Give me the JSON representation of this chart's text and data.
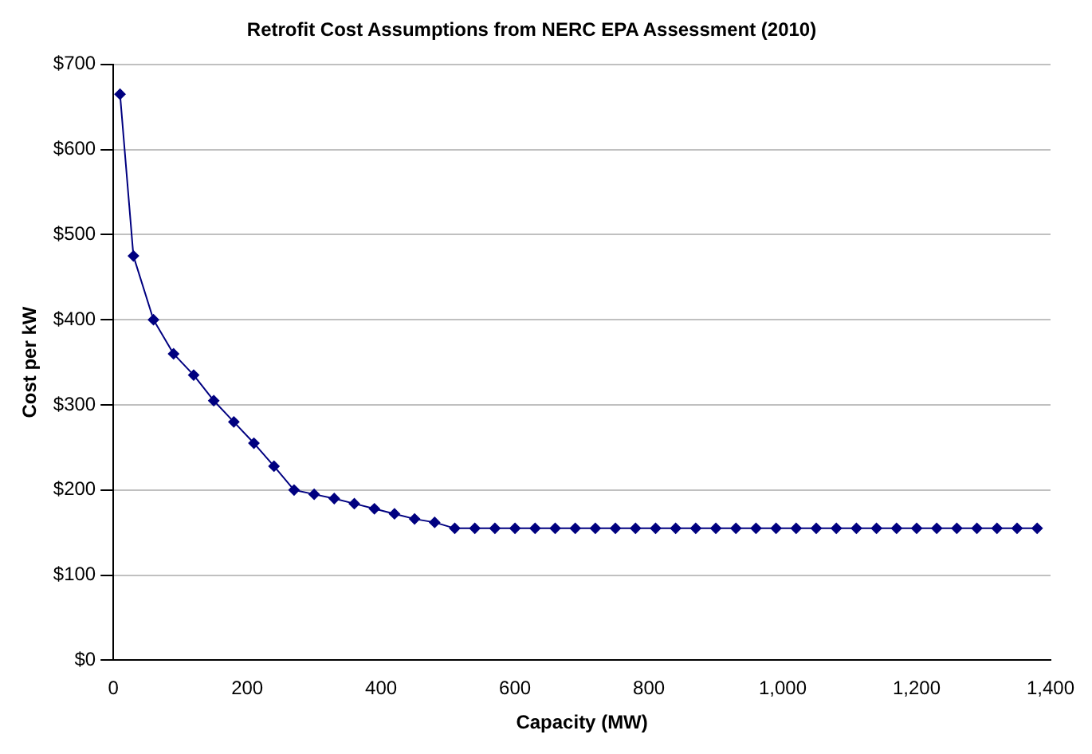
{
  "chart_data": {
    "type": "line",
    "title": "Retrofit Cost Assumptions from NERC EPA Assessment (2010)",
    "xlabel": "Capacity (MW)",
    "ylabel": "Cost per kW",
    "x": [
      10,
      30,
      60,
      90,
      120,
      150,
      180,
      210,
      240,
      270,
      300,
      330,
      360,
      390,
      420,
      450,
      480,
      510,
      540,
      570,
      600,
      630,
      660,
      690,
      720,
      750,
      780,
      810,
      840,
      870,
      900,
      930,
      960,
      990,
      1020,
      1050,
      1080,
      1110,
      1140,
      1170,
      1200,
      1230,
      1260,
      1290,
      1320,
      1350,
      1380
    ],
    "series": [
      {
        "color": "#000080",
        "values": [
          665,
          475,
          400,
          360,
          335,
          305,
          280,
          255,
          228,
          200,
          195,
          190,
          184,
          178,
          172,
          166,
          162,
          155,
          155,
          155,
          155,
          155,
          155,
          155,
          155,
          155,
          155,
          155,
          155,
          155,
          155,
          155,
          155,
          155,
          155,
          155,
          155,
          155,
          155,
          155,
          155,
          155,
          155,
          155,
          155,
          155,
          155
        ]
      }
    ],
    "xlim": [
      0,
      1400
    ],
    "xticks": [
      0,
      200,
      400,
      600,
      800,
      {
        "value": 1000,
        "label": "1,000"
      },
      {
        "value": 1200,
        "label": "1,200"
      },
      {
        "value": 1400,
        "label": "1,400"
      }
    ],
    "ylim": [
      0,
      700
    ],
    "yticks": [
      {
        "value": 0,
        "label": "$0"
      },
      {
        "value": 100,
        "label": "$100"
      },
      {
        "value": 200,
        "label": "$200"
      },
      {
        "value": 300,
        "label": "$300"
      },
      {
        "value": 400,
        "label": "$400"
      },
      {
        "value": 500,
        "label": "$500"
      },
      {
        "value": 600,
        "label": "$600"
      },
      {
        "value": 700,
        "label": "$700"
      }
    ],
    "grid": "y",
    "legend": false,
    "marker": "diamond",
    "line_style": "solid"
  }
}
